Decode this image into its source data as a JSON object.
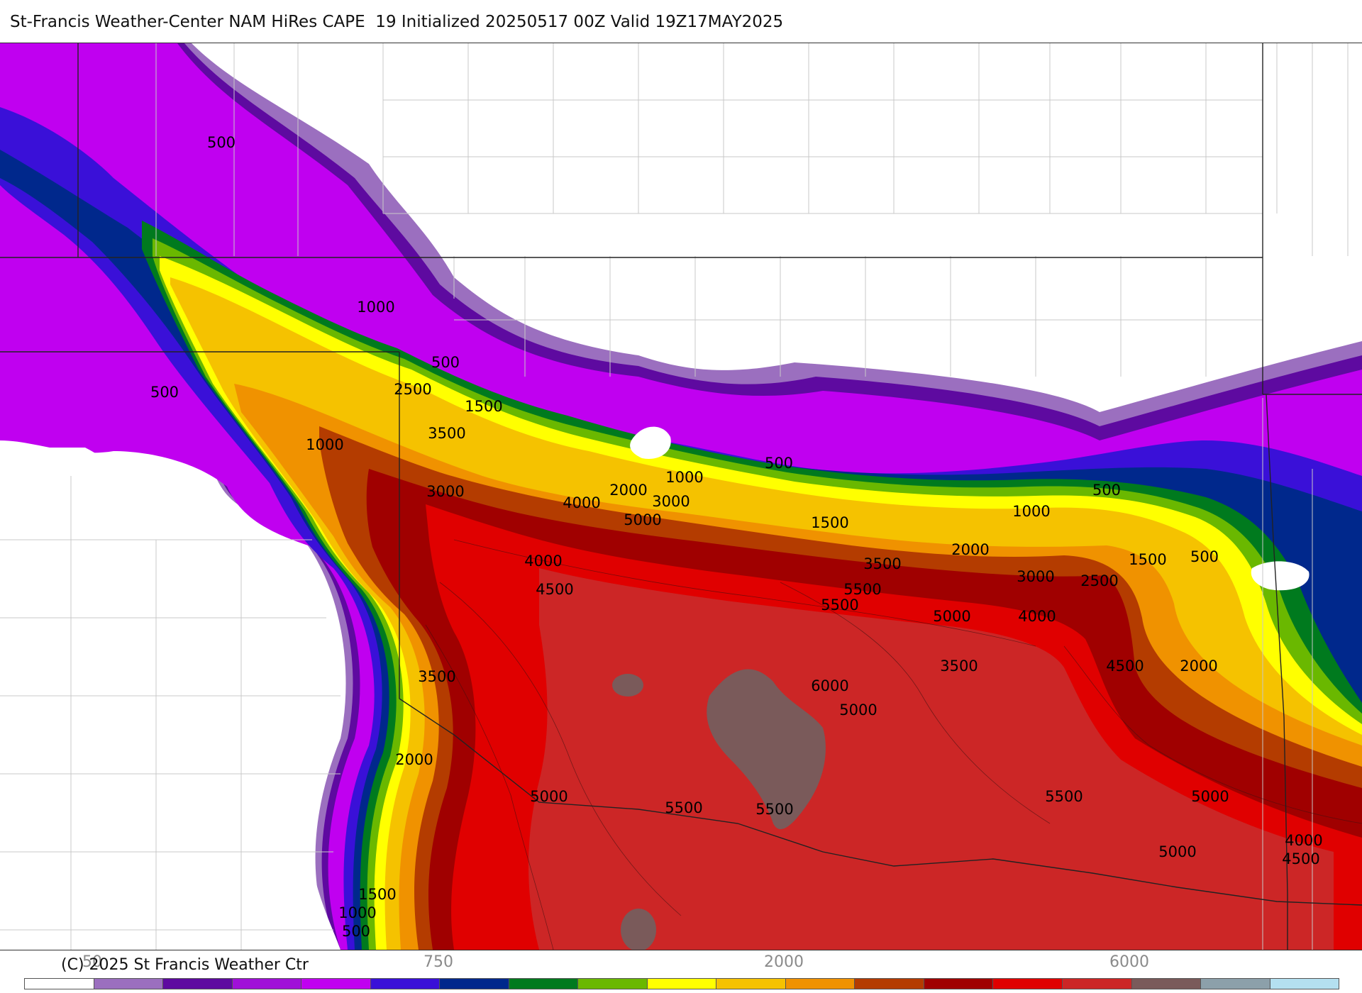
{
  "title": "St-Francis Weather-Center NAM HiRes CAPE  19 Initialized 20250517 00Z Valid 19Z17MAY2025",
  "copyright": "(C) 2025 St Francis Weather Ctr",
  "colors": {
    "background": "#ffffff",
    "county_lines": "#c8c8c8",
    "state_lines": "#222222",
    "contour_lines": "#3a1010"
  },
  "legend": {
    "tick_labels": [
      "50",
      "750",
      "2000",
      "6000"
    ],
    "colors": [
      "#ffffff",
      "#9b6fbf",
      "#5e0aa0",
      "#a010d8",
      "#c000f0",
      "#3a10d8",
      "#00288c",
      "#007a1e",
      "#6ab800",
      "#ffff00",
      "#f5c200",
      "#f09200",
      "#b43c00",
      "#a00000",
      "#e00000",
      "#cc2626",
      "#7a5a5a",
      "#8ca0aa",
      "#b4e0f0"
    ]
  },
  "contour_labels": [
    "500",
    "1000",
    "500",
    "500",
    "2500",
    "1500",
    "3500",
    "1000",
    "3000",
    "2000",
    "1000",
    "500",
    "4000",
    "3000",
    "5000",
    "1500",
    "1000",
    "500",
    "4000",
    "4500",
    "2000",
    "3500",
    "1500",
    "500",
    "3000",
    "2500",
    "5500",
    "5500",
    "5000",
    "4000",
    "3500",
    "4500",
    "3500",
    "2000",
    "6000",
    "5000",
    "2000",
    "5000",
    "5500",
    "5500",
    "5500",
    "5000",
    "4000",
    "5000",
    "4500",
    "1500",
    "1000",
    "500"
  ]
}
